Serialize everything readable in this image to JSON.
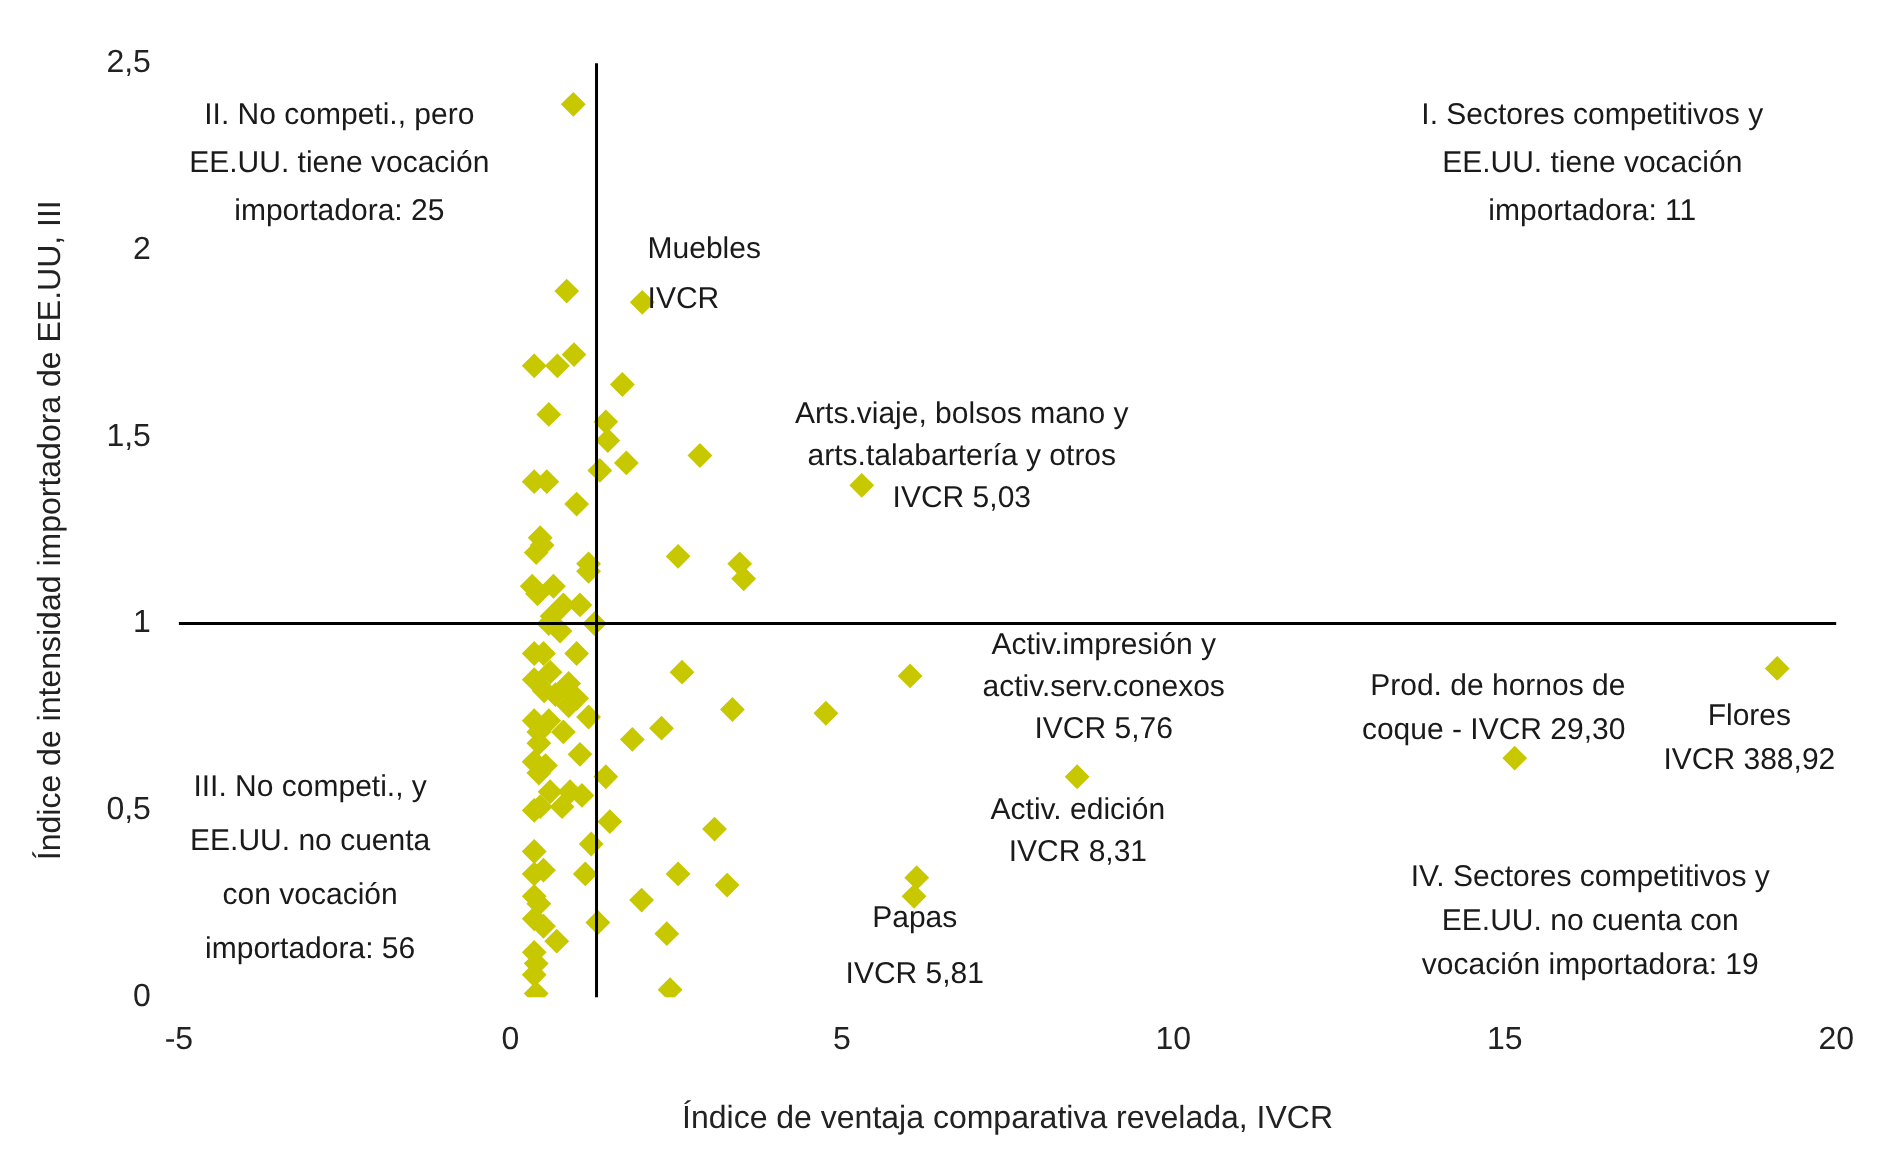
{
  "chart_data": {
    "type": "scatter",
    "xlabel": "Índice de ventaja comparativa revelada, IVCR",
    "ylabel": "Índice de intensidad importadora de EE.UU, III",
    "xlim": [
      -5,
      20
    ],
    "xticks": [
      -5,
      0,
      5,
      10,
      15,
      20
    ],
    "ylim": [
      0,
      2.5
    ],
    "yticks": [
      0,
      {
        "value": 0.5,
        "label": "0,5"
      },
      1,
      {
        "value": 1.5,
        "label": "1,5"
      },
      2,
      {
        "value": 2.5,
        "label": "2,5"
      }
    ],
    "grid": false,
    "legend": false,
    "marker": "diamond",
    "ref_lines": [
      {
        "axis": "x",
        "value": 1.3,
        "color": "#000000"
      },
      {
        "axis": "y",
        "value": 1,
        "color": "#000000"
      }
    ],
    "series": [
      {
        "color": "#c8c800",
        "x": [
          0.95,
          0.85,
          1.99,
          0.36,
          0.71,
          0.96,
          1.69,
          0.58,
          1.44,
          1.47,
          1.75,
          1.35,
          2.86,
          0.36,
          0.55,
          1.0,
          0.45,
          0.48,
          0.39,
          1.18,
          1.18,
          2.53,
          3.46,
          3.52,
          0.33,
          0.41,
          0.65,
          0.8,
          1.05,
          0.63,
          0.58,
          0.75,
          1.27,
          0.36,
          0.5,
          1.0,
          2.59,
          0.36,
          0.6,
          0.88,
          0.51,
          0.68,
          0.83,
          1.0,
          0.88,
          3.35,
          1.18,
          0.36,
          0.58,
          0.8,
          0.43,
          2.28,
          1.84,
          0.43,
          1.05,
          0.36,
          0.53,
          0.43,
          1.44,
          0.6,
          0.9,
          1.08,
          0.78,
          0.36,
          0.45,
          1.5,
          3.08,
          1.22,
          0.36,
          0.36,
          0.5,
          1.13,
          2.53,
          3.27,
          0.36,
          0.43,
          1.98,
          0.36,
          0.5,
          1.32,
          0.7,
          2.36,
          0.36,
          0.39,
          0.36,
          0.39,
          2.41,
          5.3,
          6.03,
          4.76,
          8.55,
          6.13,
          6.09,
          15.15,
          19.11
        ],
        "values": [
          2.39,
          1.89,
          1.86,
          1.69,
          1.69,
          1.72,
          1.64,
          1.56,
          1.54,
          1.49,
          1.43,
          1.41,
          1.45,
          1.38,
          1.38,
          1.32,
          1.23,
          1.21,
          1.19,
          1.16,
          1.14,
          1.18,
          1.16,
          1.12,
          1.1,
          1.08,
          1.1,
          1.05,
          1.05,
          1.02,
          1.0,
          0.98,
          1.0,
          0.92,
          0.92,
          0.92,
          0.87,
          0.85,
          0.87,
          0.84,
          0.82,
          0.81,
          0.83,
          0.8,
          0.78,
          0.77,
          0.75,
          0.74,
          0.74,
          0.71,
          0.71,
          0.72,
          0.69,
          0.68,
          0.65,
          0.63,
          0.62,
          0.6,
          0.59,
          0.55,
          0.55,
          0.54,
          0.51,
          0.5,
          0.51,
          0.47,
          0.45,
          0.41,
          0.39,
          0.33,
          0.34,
          0.33,
          0.33,
          0.3,
          0.27,
          0.25,
          0.26,
          0.21,
          0.19,
          0.2,
          0.15,
          0.17,
          0.12,
          0.09,
          0.06,
          0.01,
          0.02,
          1.37,
          0.86,
          0.76,
          0.59,
          0.32,
          0.27,
          0.64,
          0.88
        ]
      }
    ],
    "annotations": [
      "II. No competi., pero\nEE.UU. tiene vocación\nimportadora: 25",
      "I. Sectores competitivos y\nEE.UU. tiene vocación\nimportadora: 11",
      "III. No competi., y\nEE.UU. no cuenta\ncon vocación\nimportadora: 56",
      "IV. Sectores competitivos y\nEE.UU. no cuenta con\nvocación importadora: 19",
      {
        "text": "Muebles\nIVCR",
        "x": 1.99,
        "y": 1.86
      },
      {
        "text": "Arts.viaje, bolsos mano y\narts.talabartería y otros\nIVCR 5,03",
        "x": 5.3,
        "y": 1.37
      },
      {
        "text": "Activ.impresión y\nactiv.serv.conexos\nIVCR 5,76",
        "x": 6.03,
        "y": 0.86
      },
      {
        "text": "Activ. edición\nIVCR 8,31",
        "x": 8.55,
        "y": 0.59
      },
      {
        "text": "Papas\n\nIVCR 5,81",
        "x": 6.13,
        "y": 0.32
      },
      {
        "text": "Prod. de hornos de\ncoque - IVCR 29,30",
        "x": 15.15,
        "y": 0.64
      },
      {
        "text": "Flores\nIVCR 388,92",
        "x": 19.11,
        "y": 0.88
      }
    ]
  }
}
